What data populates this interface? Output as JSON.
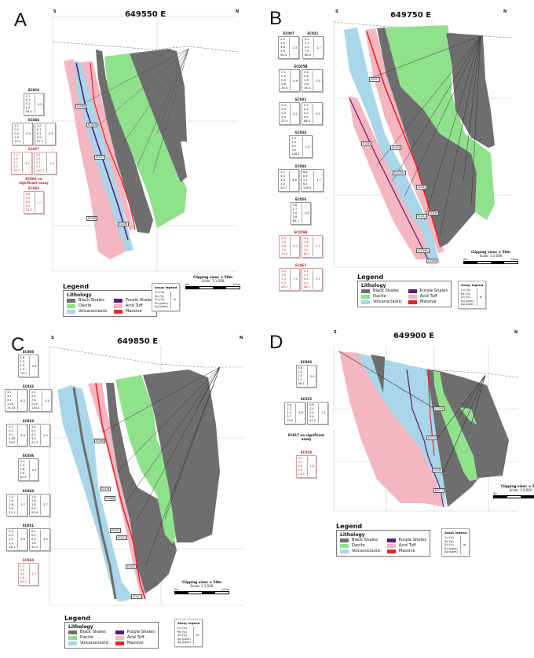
{
  "colors": {
    "black_shales": "#6e6e6e",
    "dacite": "#8fe28b",
    "volcanoclastic": "#a9d6e8",
    "purple_shales": "#5b1a7a",
    "acid_tuff": "#f4b6c0",
    "massive": "#e8242a"
  },
  "legend": {
    "heading": "Legend",
    "group": "Lithology",
    "items": [
      {
        "label": "Black Shales",
        "color": "#6e6e6e"
      },
      {
        "label": "Purple Shales",
        "color": "#5b1a7a"
      },
      {
        "label": "Dacite",
        "color": "#8fe28b"
      },
      {
        "label": "Acid Tuff",
        "color": "#f4b6c0"
      },
      {
        "label": "Volcanoclastic",
        "color": "#a9d6e8"
      },
      {
        "label": "Massive",
        "color": "#e8242a"
      }
    ]
  },
  "assay_legend": {
    "heading": "Assay legend",
    "items": [
      "Cu (%)",
      "Pb (%)",
      "Zn (%)",
      "Au (ppm)",
      "Ag (ppm)"
    ],
    "unit": "m"
  },
  "panels": [
    {
      "letter": "A",
      "title": "649550 E",
      "south": "S",
      "north": "N",
      "clipping": "Clipping view: ± 50m",
      "scale": "Scale: 1:1,500",
      "scale_start": "0m",
      "scale_end": "100m",
      "hole_labels": [
        "EC069",
        "EC062",
        "EC057",
        "EC066",
        "EC060"
      ],
      "holes": [
        [
          {
            "name": "EC026",
            "red": false,
            "cols": [
              {
                "values": [
                  "1.7",
                  "0.1",
                  "0.1",
                  "1.4",
                  "18.5"
                ],
                "summary": "0.5"
              }
            ]
          }
        ],
        [
          {
            "name": "EC046",
            "red": false,
            "cols": [
              {
                "values": [
                  "1.1",
                  "0.1",
                  "0.0",
                  "1.0",
                  "13.5"
                ],
                "summary": "0.9"
              },
              {
                "values": [
                  "3.5",
                  "0.1",
                  "0.1",
                  "0.9",
                  "27.1"
                ],
                "summary": "0.5"
              }
            ]
          }
        ],
        [
          {
            "name": "EC057",
            "red": true,
            "cols": [
              {
                "values": [
                  "7.4",
                  "1.8",
                  "4.7",
                  "2.2",
                  "78.7"
                ],
                "summary": "3.1"
              },
              {
                "values": [
                  "3.5",
                  "2.5",
                  "0.2",
                  "2.1",
                  "110.1"
                ],
                "summary": "1.6"
              }
            ]
          }
        ],
        [
          {
            "note": "EC060 no significant assay",
            "red": true
          }
        ],
        [
          {
            "name": "EC065",
            "red": true,
            "cols": [
              {
                "values": [
                  "0.6",
                  "0.1",
                  "0.0",
                  "0.1",
                  "14.0"
                ],
                "summary": "1.7"
              }
            ]
          }
        ]
      ]
    },
    {
      "letter": "B",
      "title": "649750 E",
      "south": "S",
      "north": "N",
      "clipping": "Clipping view: ± 50m",
      "scale": "Scale: 1:1,500",
      "scale_start": "0m",
      "scale_end": "100m",
      "hole_labels": [
        "EC007",
        "EC034",
        "EC044",
        "EC025B",
        "EC063",
        "EC031",
        "EC056",
        "EC059B",
        "EC062"
      ],
      "holes": [
        [
          {
            "name": "EC007",
            "red": false,
            "cols": [
              {
                "values": [
                  "2.9",
                  "2.5",
                  "4.6",
                  "2.8",
                  "62.5"
                ],
                "summary": "1.3"
              }
            ]
          },
          {
            "name": "EC021",
            "red": false,
            "cols": [
              {
                "values": [
                  "0.9",
                  "2.1",
                  "4.0",
                  "7.0",
                  "68.4"
                ],
                "summary": "1.7"
              }
            ]
          }
        ],
        [
          {
            "name": "EC025B",
            "red": false,
            "cols": [
              {
                "values": [
                  "0.1",
                  "0.2",
                  "0.5",
                  "0.8",
                  "30.5"
                ],
                "summary": "4.9"
              },
              {
                "values": [
                  "2.6",
                  "0.4",
                  "1.6",
                  "1.6",
                  "78.4"
                ],
                "summary": "2.9"
              }
            ]
          }
        ],
        [
          {
            "name": "EC031",
            "red": false,
            "cols": [
              {
                "values": [
                  "0.4",
                  "0.4",
                  "0.9",
                  "0.4",
                  "22.9"
                ],
                "summary": "4.1"
              },
              {
                "values": [
                  "0.2",
                  "0.2",
                  "0.2",
                  "0.9",
                  "68.0"
                ],
                "summary": "3.0"
              }
            ]
          }
        ],
        [
          {
            "name": "EC034",
            "red": false,
            "cols": [
              {
                "values": [
                  "2.2",
                  "2.0",
                  "6.7",
                  "3.5",
                  "158.2"
                ],
                "summary": "1.3"
              }
            ]
          }
        ],
        [
          {
            "name": "EC044",
            "red": false,
            "cols": [
              {
                "values": [
                  "1.2",
                  "0.3",
                  "1.3",
                  "1.0",
                  "26.7"
                ],
                "summary": "4.6"
              },
              {
                "values": [
                  "6.8",
                  "0.6",
                  "1.1",
                  "6.1",
                  "118.0"
                ],
                "summary": "3.7"
              }
            ]
          }
        ],
        [
          {
            "name": "EC056",
            "red": false,
            "cols": [
              {
                "values": [
                  "0.6",
                  "1.7",
                  "3.0",
                  "1.8",
                  "60.2"
                ],
                "summary": "3.0"
              }
            ]
          }
        ],
        [
          {
            "name": "EC059B",
            "red": true,
            "cols": [
              {
                "values": [
                  "0.5",
                  "1.5",
                  "0.8",
                  "1.5",
                  "22.4"
                ],
                "summary": "6.2"
              },
              {
                "values": [
                  "2.2",
                  "1.6",
                  "2.1",
                  "1.0",
                  "80.7"
                ],
                "summary": "2.1"
              }
            ]
          }
        ],
        [
          {
            "name": "EC062",
            "red": true,
            "cols": [
              {
                "values": [
                  "2.0",
                  "1.6",
                  "1.3",
                  "2.3",
                  "60.1"
                ],
                "summary": "7.2"
              },
              {
                "values": [
                  "0.1",
                  "0.1",
                  "0.8",
                  "2.1",
                  "48.1"
                ],
                "summary": "2.1"
              }
            ]
          }
        ]
      ]
    },
    {
      "letter": "C",
      "title": "649850 E",
      "south": "S",
      "north": "N",
      "clipping": "Clipping view: ± 50m",
      "scale": "Scale: 1:1,500",
      "scale_start": "0m",
      "scale_end": "100m",
      "hole_labels": [
        "EC068",
        "EC036",
        "EC066",
        "EC043",
        "EC051",
        "EC052",
        "EC053"
      ],
      "holes": [
        [
          {
            "name": "EC008",
            "red": false,
            "cols": [
              {
                "values": [
                  "1.8",
                  "1.3",
                  "1.9",
                  "1.5",
                  "74.0"
                ],
                "summary": "2.6"
              }
            ]
          }
        ],
        [
          {
            "name": "EC032",
            "red": false,
            "cols": [
              {
                "values": [
                  "3.1",
                  "3.1",
                  "0.1",
                  "1.26",
                  "73.33"
                ],
                "summary": "6.2"
              },
              {
                "values": [
                  "2.5",
                  "2.0",
                  "7.8",
                  "2.52",
                  "134.0"
                ],
                "summary": "3.0"
              }
            ]
          }
        ],
        [
          {
            "name": "EC033",
            "red": false,
            "cols": [
              {
                "values": [
                  "0.7",
                  "0.2",
                  "0.1",
                  "1.99",
                  "26.2"
                ],
                "summary": "6.3"
              },
              {
                "values": [
                  "1.4",
                  "0.2",
                  "0.2",
                  "3.3",
                  "42.3"
                ],
                "summary": "2.0"
              }
            ]
          }
        ],
        [
          {
            "name": "EC036",
            "red": false,
            "cols": [
              {
                "values": [
                  "2.1",
                  "1.3",
                  "2.8",
                  "1.6",
                  "61.5"
                ],
                "summary": "5.2"
              }
            ]
          }
        ],
        [
          {
            "name": "EC043",
            "red": false,
            "cols": [
              {
                "values": [
                  "1.3",
                  "1.6",
                  "2.6",
                  "0.9",
                  "52.1"
                ],
                "summary": "3.7"
              },
              {
                "values": [
                  "1.8",
                  "1.8",
                  "1.8",
                  "0.9",
                  "55.6"
                ],
                "summary": "2.7"
              }
            ]
          }
        ],
        [
          {
            "name": "EC051",
            "red": false,
            "cols": [
              {
                "values": [
                  "0.4",
                  "0.5",
                  "0.2",
                  "1.2",
                  "38.1"
                ],
                "summary": "6.8"
              },
              {
                "values": [
                  "0.1",
                  "0.4",
                  "0.3",
                  "1.8",
                  "41.0"
                ],
                "summary": "3.5"
              }
            ]
          }
        ],
        [
          {
            "name": "EC068",
            "red": true,
            "cols": [
              {
                "values": [
                  "1.3",
                  "1.0",
                  "0.2",
                  "1.6",
                  "90.0"
                ],
                "summary": "2.7"
              }
            ]
          }
        ]
      ]
    },
    {
      "letter": "D",
      "title": "649900 E",
      "south": "S",
      "north": "N",
      "clipping": "Clipping view: ± 50m",
      "scale": "Scale: 1:2,000",
      "scale_start": "0m",
      "scale_end": "100m",
      "hole_labels": [
        "EC004",
        "EC015",
        "EC058",
        "EC017"
      ],
      "holes": [
        [
          {
            "name": "EC004",
            "red": false,
            "cols": [
              {
                "values": [
                  "0.6",
                  "1.2",
                  "2.0",
                  "1.1",
                  "38.1"
                ],
                "summary": "3.0"
              }
            ]
          }
        ],
        [
          {
            "name": "EC015",
            "red": false,
            "cols": [
              {
                "values": [
                  "0.6",
                  "1.3",
                  "2.3",
                  "0.7",
                  "33.0"
                ],
                "summary": "4.6"
              },
              {
                "values": [
                  "0.6",
                  "3.4",
                  "0.4",
                  "3.6",
                  "67.0"
                ],
                "summary": "1.1"
              }
            ]
          }
        ],
        [
          {
            "note": "EC017 no significant assay",
            "red": false
          }
        ],
        [
          {
            "name": "EC058",
            "red": true,
            "cols": [
              {
                "values": [
                  "0.9",
                  "0.7",
                  "0.2",
                  "1.9",
                  "11.9"
                ],
                "summary": "1.6"
              }
            ]
          }
        ]
      ]
    }
  ]
}
